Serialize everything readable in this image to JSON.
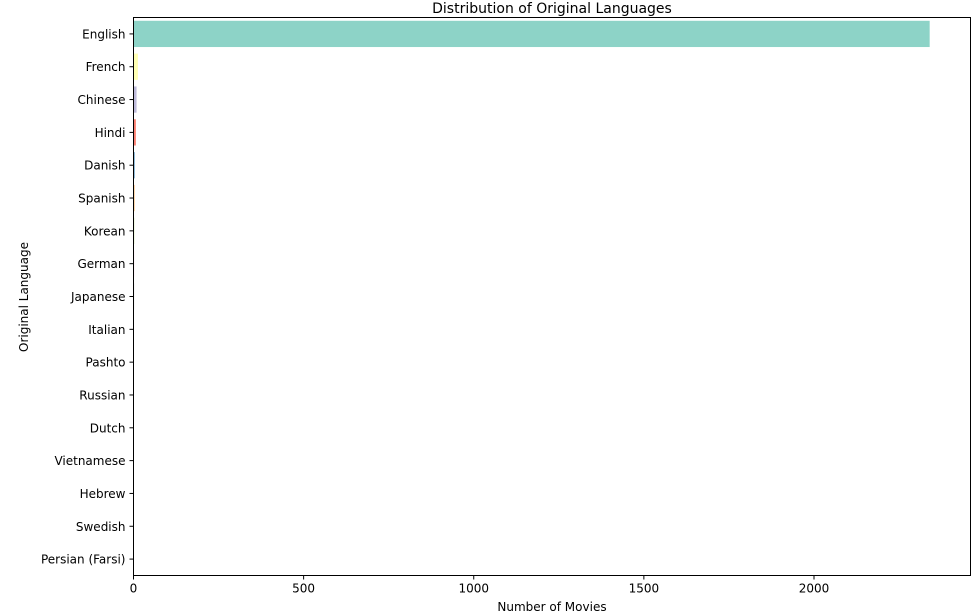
{
  "chart_data": {
    "type": "bar",
    "orientation": "horizontal",
    "title": "Distribution of Original Languages",
    "xlabel": "Number of Movies",
    "ylabel": "Original Language",
    "xlim": [
      0,
      2460
    ],
    "x_ticks": [
      0,
      500,
      1000,
      1500,
      2000
    ],
    "grid": false,
    "legend": "none",
    "categories": [
      "English",
      "French",
      "Chinese",
      "Hindi",
      "Danish",
      "Spanish",
      "Korean",
      "German",
      "Japanese",
      "Italian",
      "Pashto",
      "Russian",
      "Dutch",
      "Vietnamese",
      "Hebrew",
      "Swedish",
      "Persian (Farsi)"
    ],
    "values": [
      2340,
      13,
      9,
      7,
      4,
      3,
      2,
      2,
      2,
      1,
      1,
      1,
      1,
      1,
      1,
      1,
      1
    ],
    "colors": [
      "#8dd3c7",
      "#ffffb3",
      "#bebada",
      "#fb8072",
      "#80b1d3",
      "#fdb462",
      "#b3de69",
      "#fccde5",
      "#d9d9d9",
      "#bc80bd",
      "#ccebc5",
      "#ffed6f",
      "#8dd3c7",
      "#ffffb3",
      "#bebada",
      "#fb8072",
      "#80b1d3"
    ]
  }
}
